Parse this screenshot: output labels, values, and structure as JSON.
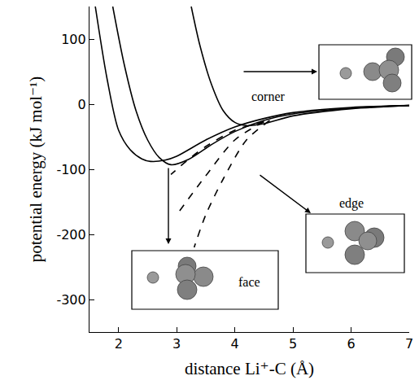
{
  "chart_data": {
    "type": "line",
    "x_label": "distance Li⁺-C (Å)",
    "y_label": "potential energy (kJ mol⁻¹)",
    "xlim": [
      1.5,
      7
    ],
    "ylim": [
      -350,
      150
    ],
    "xticks": [
      2,
      3,
      4,
      5,
      6,
      7
    ],
    "yticks": [
      -300,
      -200,
      -100,
      0,
      100
    ],
    "grid": false,
    "series": [
      {
        "color": "#000000",
        "line_style": "solid",
        "x": [
          1.6,
          1.8,
          2.0,
          2.2,
          2.4,
          2.55,
          2.8,
          3.0,
          3.5,
          4.0,
          4.5,
          5.0,
          6.0,
          7.0
        ],
        "values": [
          150,
          40,
          -40,
          -70,
          -84,
          -88,
          -86,
          -80,
          -55,
          -35,
          -22,
          -13,
          -5,
          -2
        ]
      },
      {
        "color": "#000000",
        "line_style": "solid",
        "x": [
          1.9,
          2.1,
          2.3,
          2.5,
          2.7,
          2.9,
          3.2,
          3.6,
          4.0,
          4.5,
          5.0,
          6.0,
          7.0
        ],
        "values": [
          150,
          60,
          -10,
          -55,
          -82,
          -93,
          -85,
          -62,
          -42,
          -25,
          -15,
          -6,
          -2
        ]
      },
      {
        "color": "#000000",
        "line_style": "solid",
        "x": [
          3.25,
          3.4,
          3.6,
          3.8,
          4.0,
          4.2,
          4.5,
          5.0,
          6.0,
          7.0
        ],
        "values": [
          150,
          90,
          30,
          -10,
          -28,
          -33,
          -30,
          -18,
          -7,
          -2
        ]
      },
      {
        "color": "#000000",
        "line_style": "dash",
        "x": [
          4.5,
          4.0,
          3.5,
          3.2,
          2.9
        ],
        "values": [
          -27,
          -40,
          -65,
          -85,
          -108
        ]
      },
      {
        "color": "#000000",
        "line_style": "dash",
        "x": [
          4.5,
          4.0,
          3.5,
          3.0
        ],
        "values": [
          -27,
          -55,
          -110,
          -170
        ]
      },
      {
        "color": "#000000",
        "line_style": "dash",
        "x": [
          4.6,
          4.2,
          3.8,
          3.5,
          3.3
        ],
        "values": [
          -25,
          -55,
          -115,
          -170,
          -220
        ]
      }
    ],
    "annotations": [
      {
        "text": "corner"
      },
      {
        "text": "edge"
      },
      {
        "text": "face"
      }
    ]
  }
}
